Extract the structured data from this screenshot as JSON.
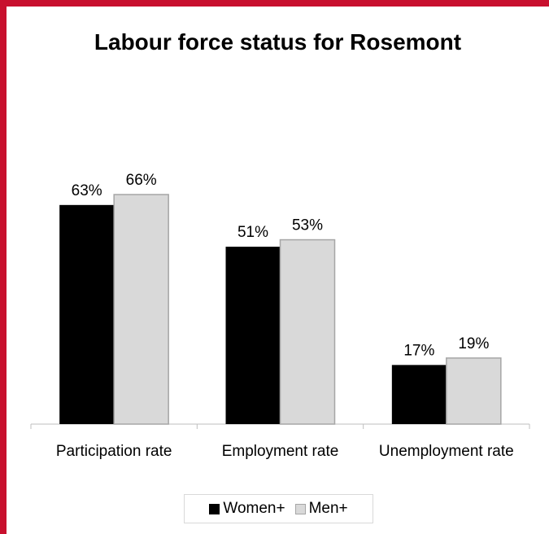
{
  "chart_data": {
    "type": "bar",
    "title": "Labour force status for Rosemont",
    "categories": [
      "Participation rate",
      "Employment rate",
      "Unemployment rate"
    ],
    "series": [
      {
        "name": "Women+",
        "values": [
          63,
          51,
          17
        ],
        "color": "#000000"
      },
      {
        "name": "Men+",
        "values": [
          66,
          53,
          19
        ],
        "color": "#d9d9d9"
      }
    ],
    "value_suffix": "%",
    "xlabel": "",
    "ylabel": "",
    "ylim": [
      0,
      66
    ],
    "grid": false,
    "legend": "bottom",
    "border_color": "#c8102e"
  }
}
